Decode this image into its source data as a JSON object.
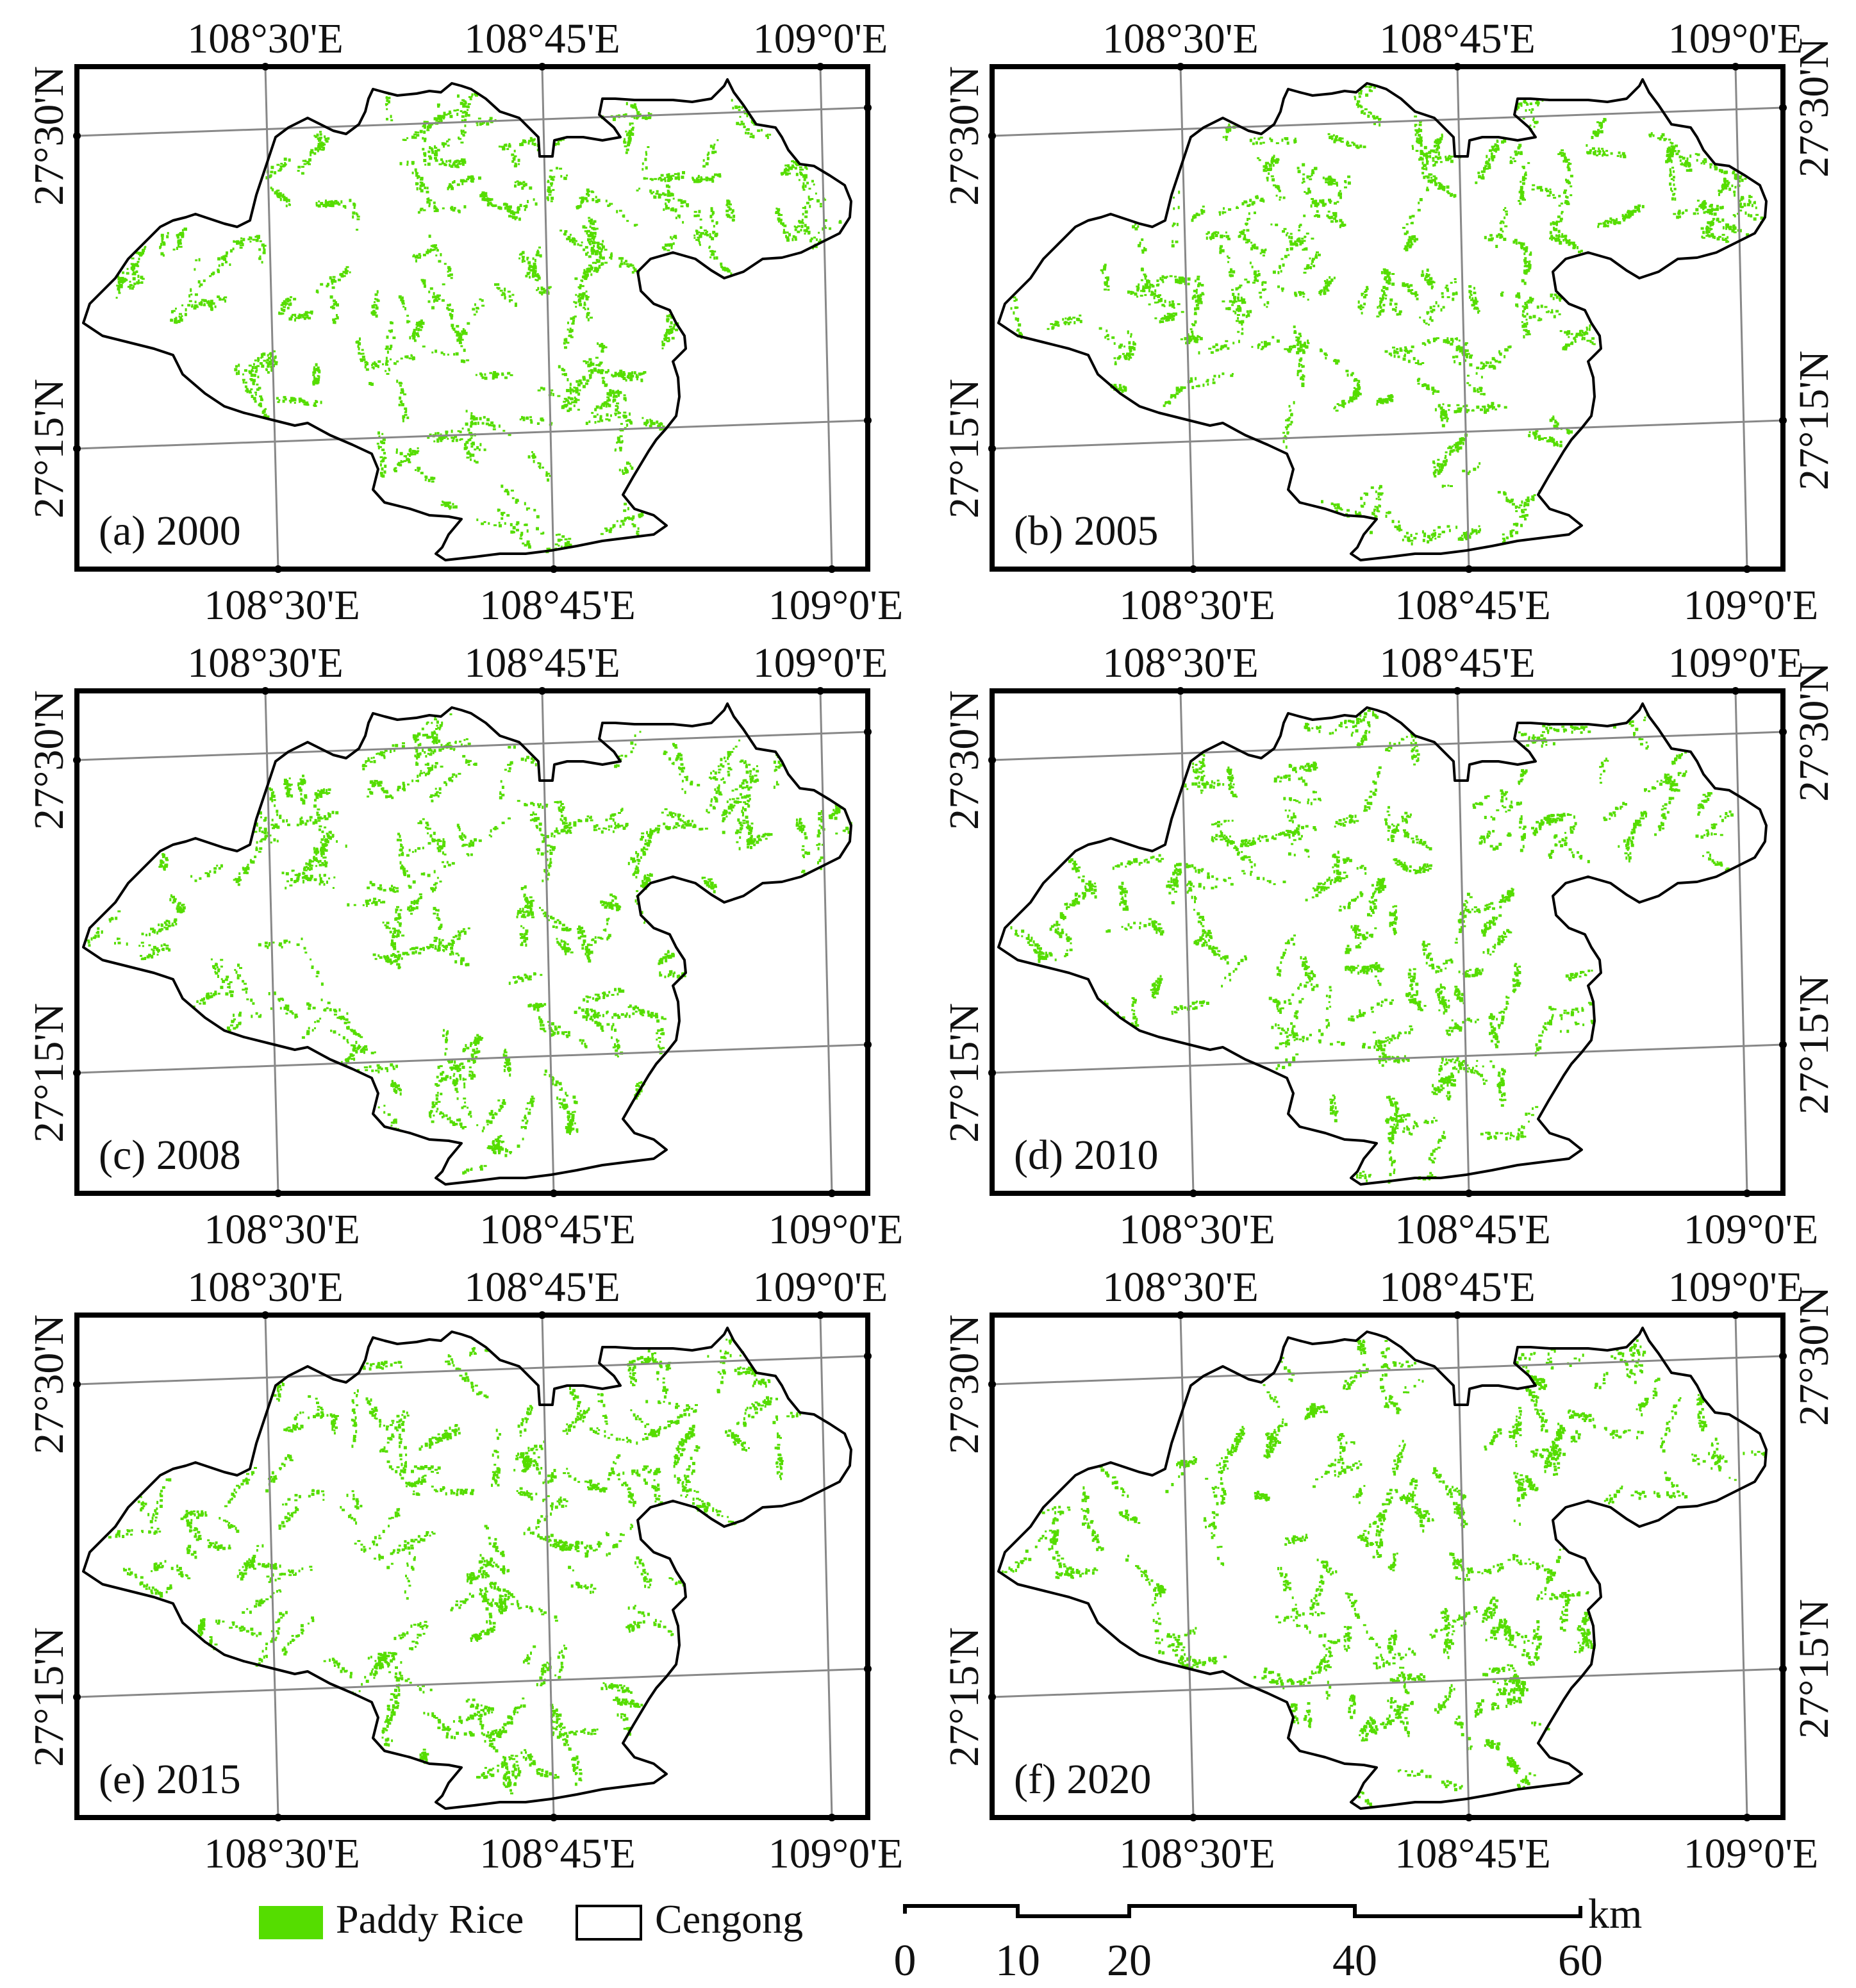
{
  "panels": [
    {
      "id": "a",
      "label": "(a) 2000",
      "year": "2000"
    },
    {
      "id": "b",
      "label": "(b) 2005",
      "year": "2005"
    },
    {
      "id": "c",
      "label": "(c) 2008",
      "year": "2008"
    },
    {
      "id": "d",
      "label": "(d) 2010",
      "year": "2010"
    },
    {
      "id": "e",
      "label": "(e) 2015",
      "year": "2015"
    },
    {
      "id": "f",
      "label": "(f) 2020",
      "year": "2020"
    }
  ],
  "graticule": {
    "longitude_labels": [
      "108°30'E",
      "108°45'E",
      "109°0'E"
    ],
    "latitude_labels": [
      "27°30'N",
      "27°15'N"
    ]
  },
  "legend": {
    "items": [
      {
        "label": "Paddy Rice",
        "color": "#55dd00",
        "symbol": "filled-box"
      },
      {
        "label": "Cengong",
        "color": "#ffffff",
        "symbol": "outline-box"
      }
    ]
  },
  "scale_bar": {
    "ticks": [
      "0",
      "10",
      "20",
      "40",
      "60"
    ],
    "unit": "km"
  },
  "colors": {
    "paddy_rice": "#55dd00",
    "boundary": "#000000",
    "graticule": "#888888",
    "frame": "#000000"
  }
}
